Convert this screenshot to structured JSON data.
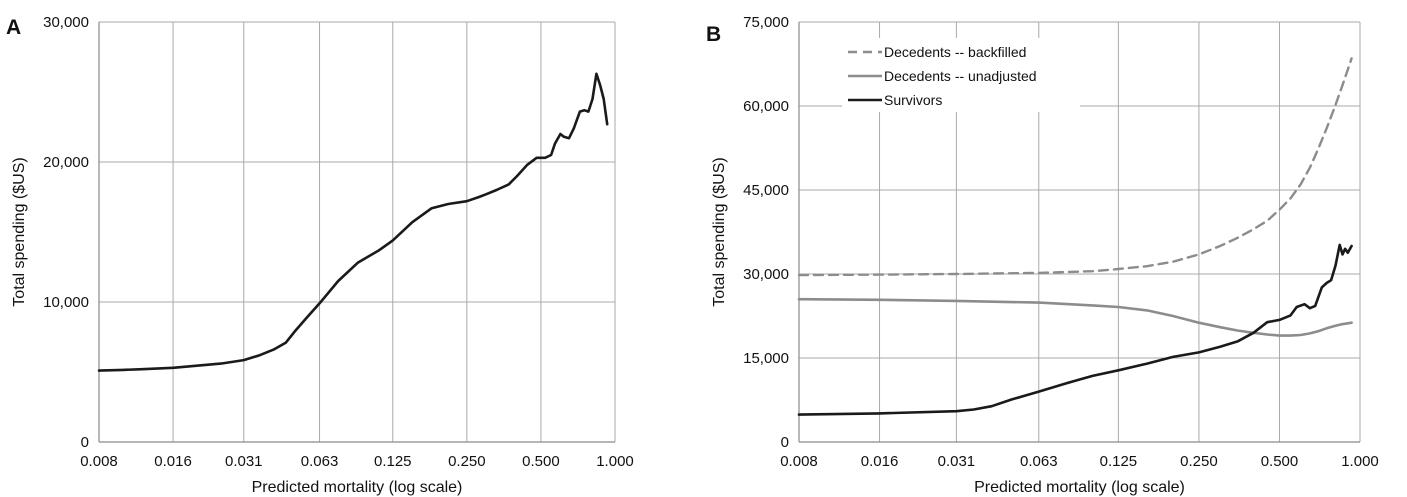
{
  "chart_data": [
    {
      "type": "line",
      "panel": "A",
      "title": "",
      "xlabel": "Predicted mortality (log scale)",
      "ylabel": "Total spending ($US)",
      "x_scale": "log",
      "x_ticks": [
        0.008,
        0.016,
        0.031,
        0.063,
        0.125,
        0.25,
        0.5,
        1.0
      ],
      "x_tick_labels": [
        "0.008",
        "0.016",
        "0.031",
        "0.063",
        "0.125",
        "0.250",
        "0.500",
        "1.000"
      ],
      "ylim": [
        0,
        30000
      ],
      "y_ticks": [
        0,
        10000,
        20000,
        30000
      ],
      "y_tick_labels": [
        "0",
        "10,000",
        "20,000",
        "30,000"
      ],
      "grid": true,
      "legend": "none",
      "series": [
        {
          "color": "#1a1a1a",
          "style": "solid",
          "x": [
            0.008,
            0.01,
            0.012,
            0.016,
            0.02,
            0.025,
            0.031,
            0.036,
            0.041,
            0.046,
            0.05,
            0.056,
            0.063,
            0.075,
            0.09,
            0.11,
            0.125,
            0.15,
            0.18,
            0.21,
            0.25,
            0.28,
            0.3,
            0.33,
            0.37,
            0.4,
            0.44,
            0.48,
            0.5,
            0.52,
            0.55,
            0.57,
            0.6,
            0.62,
            0.65,
            0.68,
            0.72,
            0.75,
            0.78,
            0.81,
            0.84,
            0.87,
            0.9,
            0.93
          ],
          "y": [
            5100,
            5150,
            5200,
            5300,
            5450,
            5600,
            5850,
            6200,
            6600,
            7100,
            7900,
            8900,
            9900,
            11500,
            12800,
            13700,
            14400,
            15700,
            16700,
            17000,
            17200,
            17500,
            17700,
            18000,
            18400,
            19000,
            19800,
            20300,
            20300,
            20300,
            20500,
            21300,
            22000,
            21800,
            21700,
            22400,
            23600,
            23700,
            23600,
            24500,
            26300,
            25500,
            24500,
            22700
          ]
        }
      ]
    },
    {
      "type": "line",
      "panel": "B",
      "title": "",
      "xlabel": "Predicted mortality (log scale)",
      "ylabel": "Total spending ($US)",
      "x_scale": "log",
      "x_ticks": [
        0.008,
        0.016,
        0.031,
        0.063,
        0.125,
        0.25,
        0.5,
        1.0
      ],
      "x_tick_labels": [
        "0.008",
        "0.016",
        "0.031",
        "0.063",
        "0.125",
        "0.250",
        "0.500",
        "1.000"
      ],
      "ylim": [
        0,
        75000
      ],
      "y_ticks": [
        0,
        15000,
        30000,
        45000,
        60000,
        75000
      ],
      "y_tick_labels": [
        "0",
        "15,000",
        "30,000",
        "45,000",
        "60,000",
        "75,000"
      ],
      "grid": true,
      "legend": "top-left",
      "series": [
        {
          "name": "Decedents -- backfilled",
          "color": "#8c8c8c",
          "style": "dashed",
          "x": [
            0.008,
            0.016,
            0.031,
            0.063,
            0.1,
            0.125,
            0.16,
            0.2,
            0.25,
            0.3,
            0.35,
            0.4,
            0.45,
            0.5,
            0.55,
            0.6,
            0.65,
            0.7,
            0.75,
            0.8,
            0.85,
            0.9,
            0.93
          ],
          "y": [
            29800,
            29900,
            30000,
            30200,
            30500,
            30900,
            31400,
            32200,
            33500,
            35000,
            36500,
            38000,
            39500,
            41500,
            43500,
            46000,
            49000,
            52500,
            56000,
            59500,
            63000,
            66500,
            68500
          ]
        },
        {
          "name": "Decedents -- unadjusted",
          "color": "#8c8c8c",
          "style": "solid",
          "x": [
            0.008,
            0.016,
            0.031,
            0.063,
            0.1,
            0.125,
            0.16,
            0.2,
            0.25,
            0.3,
            0.35,
            0.4,
            0.45,
            0.5,
            0.55,
            0.6,
            0.65,
            0.7,
            0.75,
            0.8,
            0.85,
            0.9,
            0.93
          ],
          "y": [
            25500,
            25400,
            25200,
            24900,
            24400,
            24100,
            23500,
            22500,
            21300,
            20500,
            19900,
            19500,
            19200,
            19000,
            19000,
            19100,
            19400,
            19800,
            20300,
            20700,
            21000,
            21200,
            21300
          ]
        },
        {
          "name": "Survivors",
          "color": "#1a1a1a",
          "style": "solid",
          "x": [
            0.008,
            0.016,
            0.031,
            0.036,
            0.042,
            0.05,
            0.063,
            0.08,
            0.1,
            0.125,
            0.16,
            0.2,
            0.25,
            0.3,
            0.35,
            0.4,
            0.45,
            0.5,
            0.55,
            0.58,
            0.62,
            0.65,
            0.68,
            0.72,
            0.75,
            0.78,
            0.81,
            0.84,
            0.86,
            0.88,
            0.9,
            0.93
          ],
          "y": [
            4900,
            5100,
            5500,
            5800,
            6400,
            7600,
            9000,
            10500,
            11800,
            12800,
            14000,
            15200,
            16000,
            17000,
            18000,
            19500,
            21400,
            21800,
            22600,
            24100,
            24600,
            23900,
            24300,
            27600,
            28400,
            28900,
            31500,
            35200,
            33500,
            34500,
            33800,
            35000
          ]
        }
      ]
    }
  ],
  "panels": {
    "a": {
      "letter": "A"
    },
    "b": {
      "letter": "B"
    }
  }
}
